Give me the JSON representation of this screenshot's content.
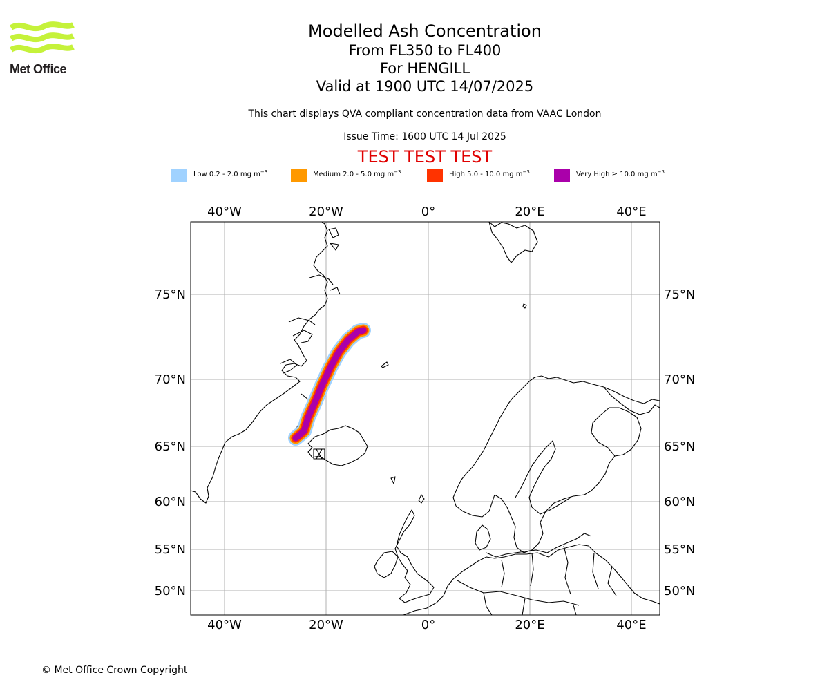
{
  "logo": {
    "text": "Met Office"
  },
  "header": {
    "title": "Modelled Ash Concentration",
    "levels": "From FL350 to FL400",
    "volcano": "For HENGILL",
    "valid": "Valid at 1900 UTC 14/07/2025",
    "compliance_note": "This chart displays QVA compliant concentration data from VAAC London",
    "issue_time": "Issue Time: 1600 UTC 14 Jul 2025",
    "test_banner": "TEST TEST TEST"
  },
  "legend": {
    "items": [
      {
        "label_pre": "Low 0.2 - 2.0 mg m",
        "color": "#a0d2ff"
      },
      {
        "label_pre": "Medium 2.0 - 5.0 mg m",
        "color": "#ff9900"
      },
      {
        "label_pre": "High 5.0 - 10.0 mg m",
        "color": "#ff3300"
      },
      {
        "label_pre": "Very High ≥ 10.0 mg m",
        "color": "#aa00aa"
      }
    ],
    "unit_exponent": "−3"
  },
  "map": {
    "lon_ticks": [
      "40°W",
      "20°W",
      "0°",
      "20°E",
      "40°E"
    ],
    "lat_ticks": [
      "75°N",
      "70°N",
      "65°N",
      "60°N",
      "55°N",
      "50°N"
    ],
    "colors": {
      "gridline": "#b0b0b0",
      "coastline": "#000000",
      "frame": "#000000"
    }
  },
  "footer": {
    "copyright": "© Met Office Crown Copyright"
  }
}
